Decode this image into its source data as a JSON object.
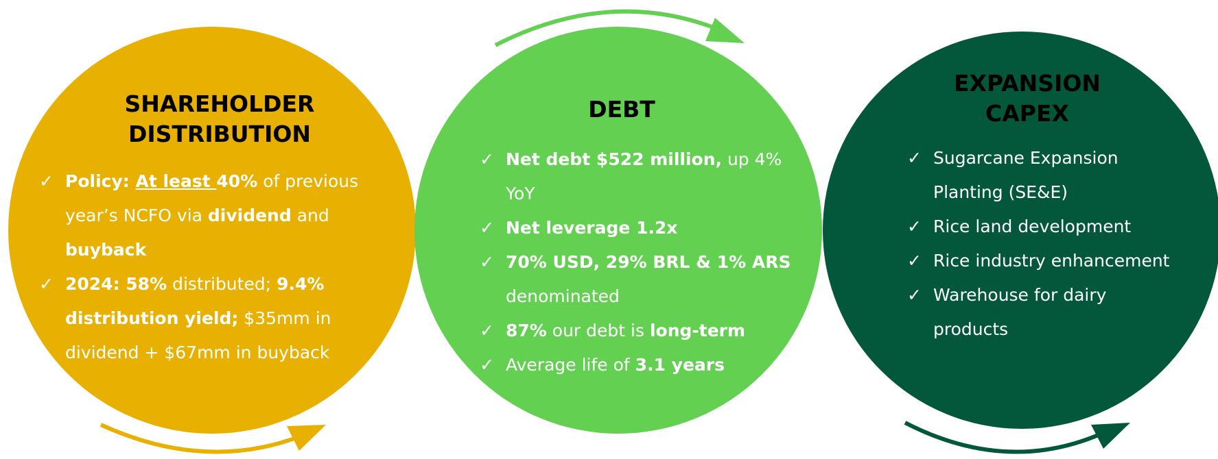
{
  "columns": [
    {
      "title": "SHAREHOLDER DISTRIBUTION",
      "color": "#E8B000",
      "bullets": [
        [
          {
            "text": "Policy: ",
            "bold": true
          },
          {
            "text": "At least ",
            "bold": true,
            "underline": true
          },
          {
            "text": "40%",
            "bold": true
          },
          {
            "text": " of previous year’s NCFO via "
          },
          {
            "text": "dividend",
            "bold": true
          },
          {
            "text": " and "
          },
          {
            "text": "buyback",
            "bold": true
          }
        ],
        [
          {
            "text": "2024: 58%",
            "bold": true
          },
          {
            "text": " distributed; "
          },
          {
            "text": "9.4% distribution yield;",
            "bold": true
          },
          {
            "text": " $35mm in dividend + $67mm in buyback"
          }
        ]
      ]
    },
    {
      "title": "DEBT",
      "color": "#63D052",
      "bullets": [
        [
          {
            "text": "Net debt $522 million,",
            "bold": true
          },
          {
            "text": " up 4% YoY"
          }
        ],
        [
          {
            "text": "Net leverage 1.2x",
            "bold": true
          }
        ],
        [
          {
            "text": "70% USD, 29% BRL & 1% ARS",
            "bold": true
          },
          {
            "text": " denominated"
          }
        ],
        [
          {
            "text": "87%",
            "bold": true
          },
          {
            "text": " our debt is "
          },
          {
            "text": "long-term",
            "bold": true
          }
        ],
        [
          {
            "text": "Average life of "
          },
          {
            "text": "3.1 years",
            "bold": true
          }
        ]
      ]
    },
    {
      "title": "EXPANSION CAPEX",
      "color": "#03573A",
      "bullets": [
        [
          {
            "text": "Sugarcane Expansion Planting (SE&E)"
          }
        ],
        [
          {
            "text": "Rice land development"
          }
        ],
        [
          {
            "text": "Rice industry enhancement"
          }
        ],
        [
          {
            "text": "Warehouse for dairy products"
          }
        ]
      ]
    }
  ]
}
